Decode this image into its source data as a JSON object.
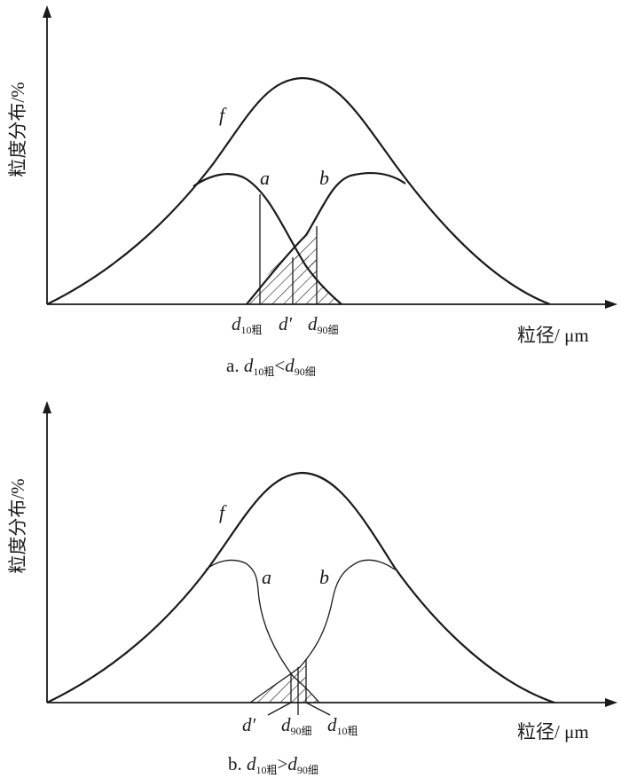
{
  "panels": [
    {
      "id": "a",
      "ylabel": "粒度分布/%",
      "xlabel": "粒径/ μm",
      "curve_f": "f",
      "curve_a": "a",
      "curve_b": "b",
      "marks": [
        {
          "sym": "d",
          "sub": "10粗",
          "prime": ""
        },
        {
          "sym": "d",
          "sub": "",
          "prime": "′"
        },
        {
          "sym": "d",
          "sub": "90细",
          "prime": ""
        }
      ],
      "caption": {
        "prefix": "a. ",
        "sym1": "d",
        "sub1": "10粗",
        "op": "<",
        "sym2": "d",
        "sub2": "90细"
      }
    },
    {
      "id": "b",
      "ylabel": "粒度分布/%",
      "xlabel": "粒径/ μm",
      "curve_f": "f",
      "curve_a": "a",
      "curve_b": "b",
      "marks": [
        {
          "sym": "d",
          "sub": "",
          "prime": "′"
        },
        {
          "sym": "d",
          "sub": "90细",
          "prime": ""
        },
        {
          "sym": "d",
          "sub": "10粗",
          "prime": ""
        }
      ],
      "caption": {
        "prefix": "b. ",
        "sym1": "d",
        "sub1": "10粗",
        "op": ">",
        "sym2": "d",
        "sub2": "90细"
      }
    }
  ]
}
